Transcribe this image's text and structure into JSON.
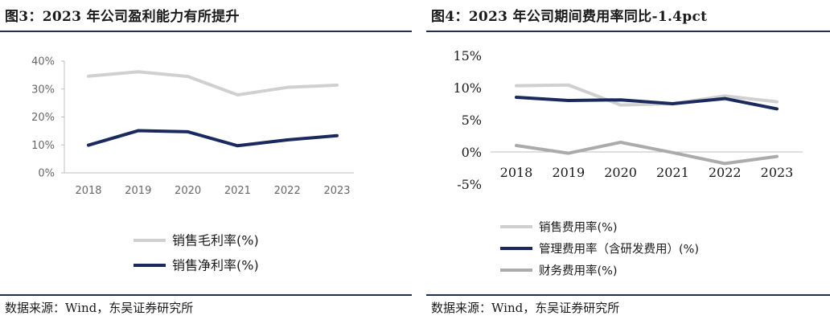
{
  "left": {
    "title": "图3：2023 年公司盈利能力有所提升",
    "source": "数据来源：Wind，东吴证券研究所"
  },
  "right": {
    "title": "图4：2023 年公司期间费用率同比-1.4pct",
    "source": "数据来源：Wind，东吴证券研究所"
  },
  "chart_data": [
    {
      "type": "line",
      "title": "图3：2023 年公司盈利能力有所提升",
      "categories": [
        "2018",
        "2019",
        "2020",
        "2021",
        "2022",
        "2023"
      ],
      "ylim": [
        0,
        40
      ],
      "yticks": [
        0,
        10,
        20,
        30,
        40
      ],
      "ytick_labels": [
        "0%",
        "10%",
        "20%",
        "30%",
        "40%"
      ],
      "grid": false,
      "legend_position": "bottom",
      "series": [
        {
          "name": "销售毛利率(%)",
          "color": "#d0d0d0",
          "values": [
            34.6,
            36.2,
            34.5,
            27.9,
            30.6,
            31.4
          ]
        },
        {
          "name": "销售净利率(%)",
          "color": "#1a2a5e",
          "values": [
            9.9,
            15.1,
            14.7,
            9.7,
            11.8,
            13.3
          ]
        }
      ]
    },
    {
      "type": "line",
      "title": "图4：2023 年公司期间费用率同比-1.4pct",
      "categories": [
        "2018",
        "2019",
        "2020",
        "2021",
        "2022",
        "2023"
      ],
      "ylim": [
        -5,
        15
      ],
      "yticks": [
        -5,
        0,
        5,
        10,
        15
      ],
      "ytick_labels": [
        "-5%",
        "0%",
        "5%",
        "10%",
        "15%"
      ],
      "grid": false,
      "legend_position": "bottom",
      "series": [
        {
          "name": "销售费用率(%)",
          "color": "#d0d0d0",
          "values": [
            10.3,
            10.4,
            7.3,
            7.5,
            8.7,
            7.8
          ]
        },
        {
          "name": "管理费用率（含研发费用）(%)",
          "color": "#1a2a5e",
          "values": [
            8.5,
            8.0,
            8.1,
            7.5,
            8.3,
            6.7
          ]
        },
        {
          "name": "财务费用率(%)",
          "color": "#ababab",
          "values": [
            1.0,
            -0.2,
            1.5,
            -0.1,
            -1.8,
            -0.7
          ]
        }
      ]
    }
  ]
}
